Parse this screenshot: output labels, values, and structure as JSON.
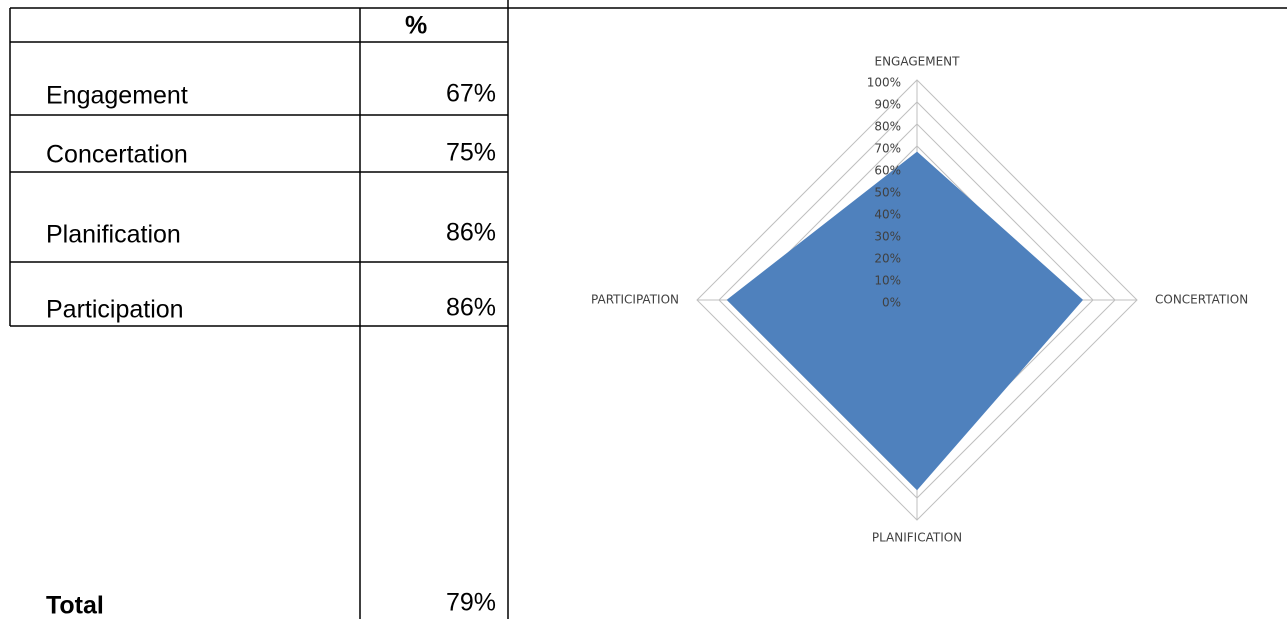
{
  "table": {
    "header": [
      "",
      "%"
    ],
    "rows": [
      [
        "Engagement",
        "67%"
      ],
      [
        "Concertation",
        "75%"
      ],
      [
        "Planification",
        "86%"
      ],
      [
        "Participation",
        "86%"
      ]
    ],
    "total": [
      "Total",
      "79%"
    ]
  },
  "chart_data": {
    "type": "radar",
    "categories": [
      "ENGAGEMENT",
      "CONCERTATION",
      "PLANIFICATION",
      "PARTICIPATION"
    ],
    "values": [
      67,
      75,
      86,
      86
    ],
    "color": "#4f81bd",
    "rlim": [
      0,
      100
    ],
    "rticks": [
      {
        "value": 0,
        "label": "0%"
      },
      {
        "value": 10,
        "label": "10%"
      },
      {
        "value": 20,
        "label": "20%"
      },
      {
        "value": 30,
        "label": "30%"
      },
      {
        "value": 40,
        "label": "40%"
      },
      {
        "value": 50,
        "label": "50%"
      },
      {
        "value": 60,
        "label": "60%"
      },
      {
        "value": 70,
        "label": "70%"
      },
      {
        "value": 80,
        "label": "80%"
      },
      {
        "value": 90,
        "label": "90%"
      },
      {
        "value": 100,
        "label": "100%"
      }
    ],
    "grid": true
  }
}
